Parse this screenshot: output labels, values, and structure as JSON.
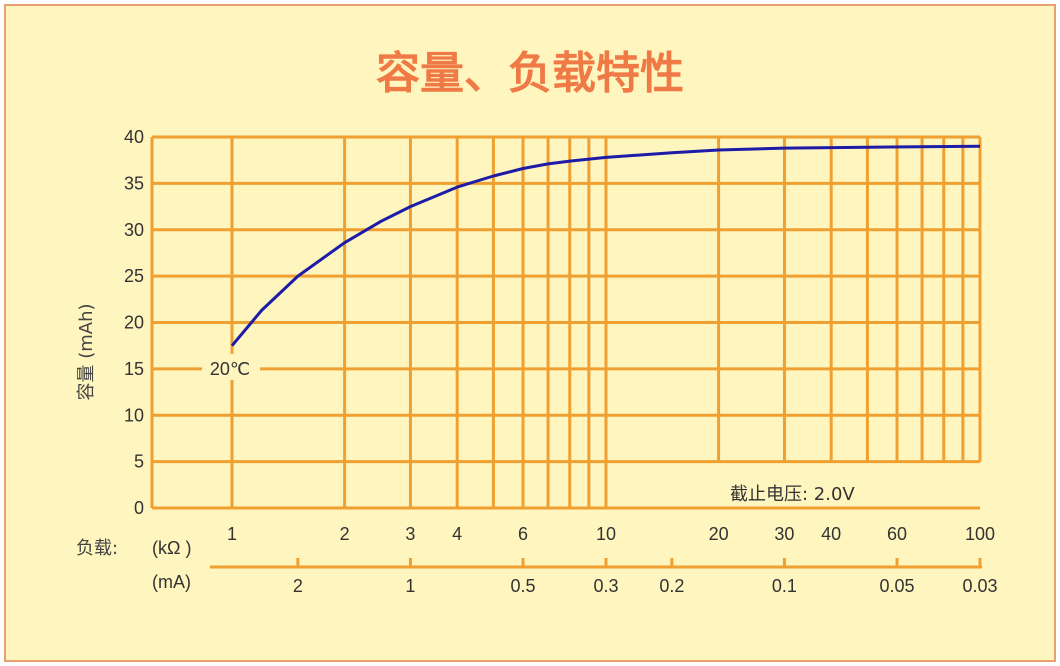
{
  "chart_data": {
    "type": "line",
    "title": "容量、负载特性",
    "ylabel": "容量 (mAh)",
    "xlabel_prefix": "负载:",
    "x_unit_primary": "(kΩ )",
    "x_unit_secondary": "(mA)",
    "x_scale": "log",
    "xlim": [
      1,
      100
    ],
    "ylim": [
      0,
      40
    ],
    "y_ticks": [
      0,
      5,
      10,
      15,
      20,
      25,
      30,
      35,
      40
    ],
    "x_ticks_kohm": [
      {
        "v": 1,
        "label": "1"
      },
      {
        "v": 2,
        "label": "2"
      },
      {
        "v": 3,
        "label": "3"
      },
      {
        "v": 4,
        "label": "4"
      },
      {
        "v": 6,
        "label": "6"
      },
      {
        "v": 10,
        "label": "10"
      },
      {
        "v": 20,
        "label": "20"
      },
      {
        "v": 30,
        "label": "30"
      },
      {
        "v": 40,
        "label": "40"
      },
      {
        "v": 60,
        "label": "60"
      },
      {
        "v": 100,
        "label": "100"
      }
    ],
    "x_ticks_ma": [
      {
        "label": "2",
        "kohm": 1.5
      },
      {
        "label": "1",
        "kohm": 3
      },
      {
        "label": "0.5",
        "kohm": 6
      },
      {
        "label": "0.3",
        "kohm": 10
      },
      {
        "label": "0.2",
        "kohm": 15
      },
      {
        "label": "0.1",
        "kohm": 30
      },
      {
        "label": "0.05",
        "kohm": 60
      },
      {
        "label": "0.03",
        "kohm": 100
      }
    ],
    "series": [
      {
        "label": "20℃",
        "x": [
          1,
          1.2,
          1.5,
          2,
          2.5,
          3,
          4,
          5,
          6,
          7,
          8,
          10,
          15,
          20,
          30,
          50,
          100
        ],
        "y": [
          17.5,
          21.3,
          25.0,
          28.6,
          30.9,
          32.5,
          34.6,
          35.8,
          36.6,
          37.1,
          37.4,
          37.8,
          38.3,
          38.6,
          38.8,
          38.9,
          39.0
        ],
        "color": "#1c1ca8"
      }
    ],
    "grid": true,
    "annotation": "截止电压: 2.0V",
    "colors": {
      "grid": "#f0a030",
      "curve": "#1c1ca8",
      "title": "#f07a45",
      "background": "#fff5bf"
    }
  }
}
